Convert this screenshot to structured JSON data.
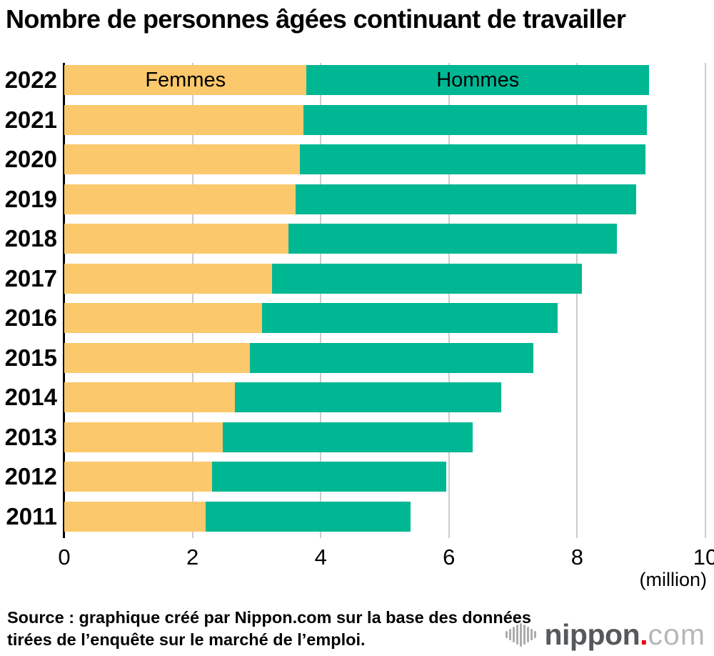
{
  "title": "Nombre de personnes âgées continuant de travailler",
  "chart_data": {
    "type": "bar",
    "orientation": "horizontal",
    "stacked": true,
    "title": "Nombre de personnes âgées continuant de travailler",
    "categories": [
      "2022",
      "2021",
      "2020",
      "2019",
      "2018",
      "2017",
      "2016",
      "2015",
      "2014",
      "2013",
      "2012",
      "2011"
    ],
    "series": [
      {
        "name": "Femmes",
        "color": "#fbc96b",
        "values": [
          3.78,
          3.73,
          3.68,
          3.61,
          3.5,
          3.24,
          3.08,
          2.9,
          2.66,
          2.47,
          2.3,
          2.2
        ]
      },
      {
        "name": "Hommes",
        "color": "#00b794",
        "values": [
          5.34,
          5.36,
          5.38,
          5.31,
          5.12,
          4.83,
          4.62,
          4.42,
          4.16,
          3.9,
          3.66,
          3.2
        ]
      }
    ],
    "totals": [
      9.12,
      9.09,
      9.06,
      8.92,
      8.62,
      8.07,
      7.7,
      7.32,
      6.82,
      6.37,
      5.96,
      5.4
    ],
    "xlim": [
      0,
      10
    ],
    "xticks": [
      "0",
      "2",
      "4",
      "6",
      "8",
      "10"
    ],
    "unit_label": "(million)",
    "grid": true,
    "legend_position": "inside-first-bar"
  },
  "footer": {
    "source_line1": "Source : graphique créé par Nippon.com sur la base des données",
    "source_line2": "tirées de l’enquête sur le marché de l’emploi."
  },
  "logo": {
    "wordmark": "nippon",
    "dot": ".",
    "tld": "com"
  },
  "colors": {
    "femmes": "#fbc96b",
    "hommes": "#00b794",
    "gridline": "#cccccc",
    "axis": "#000000",
    "logo_gray": "#56595c",
    "logo_light_gray": "#b5b8ba",
    "logo_red": "#e60012"
  }
}
